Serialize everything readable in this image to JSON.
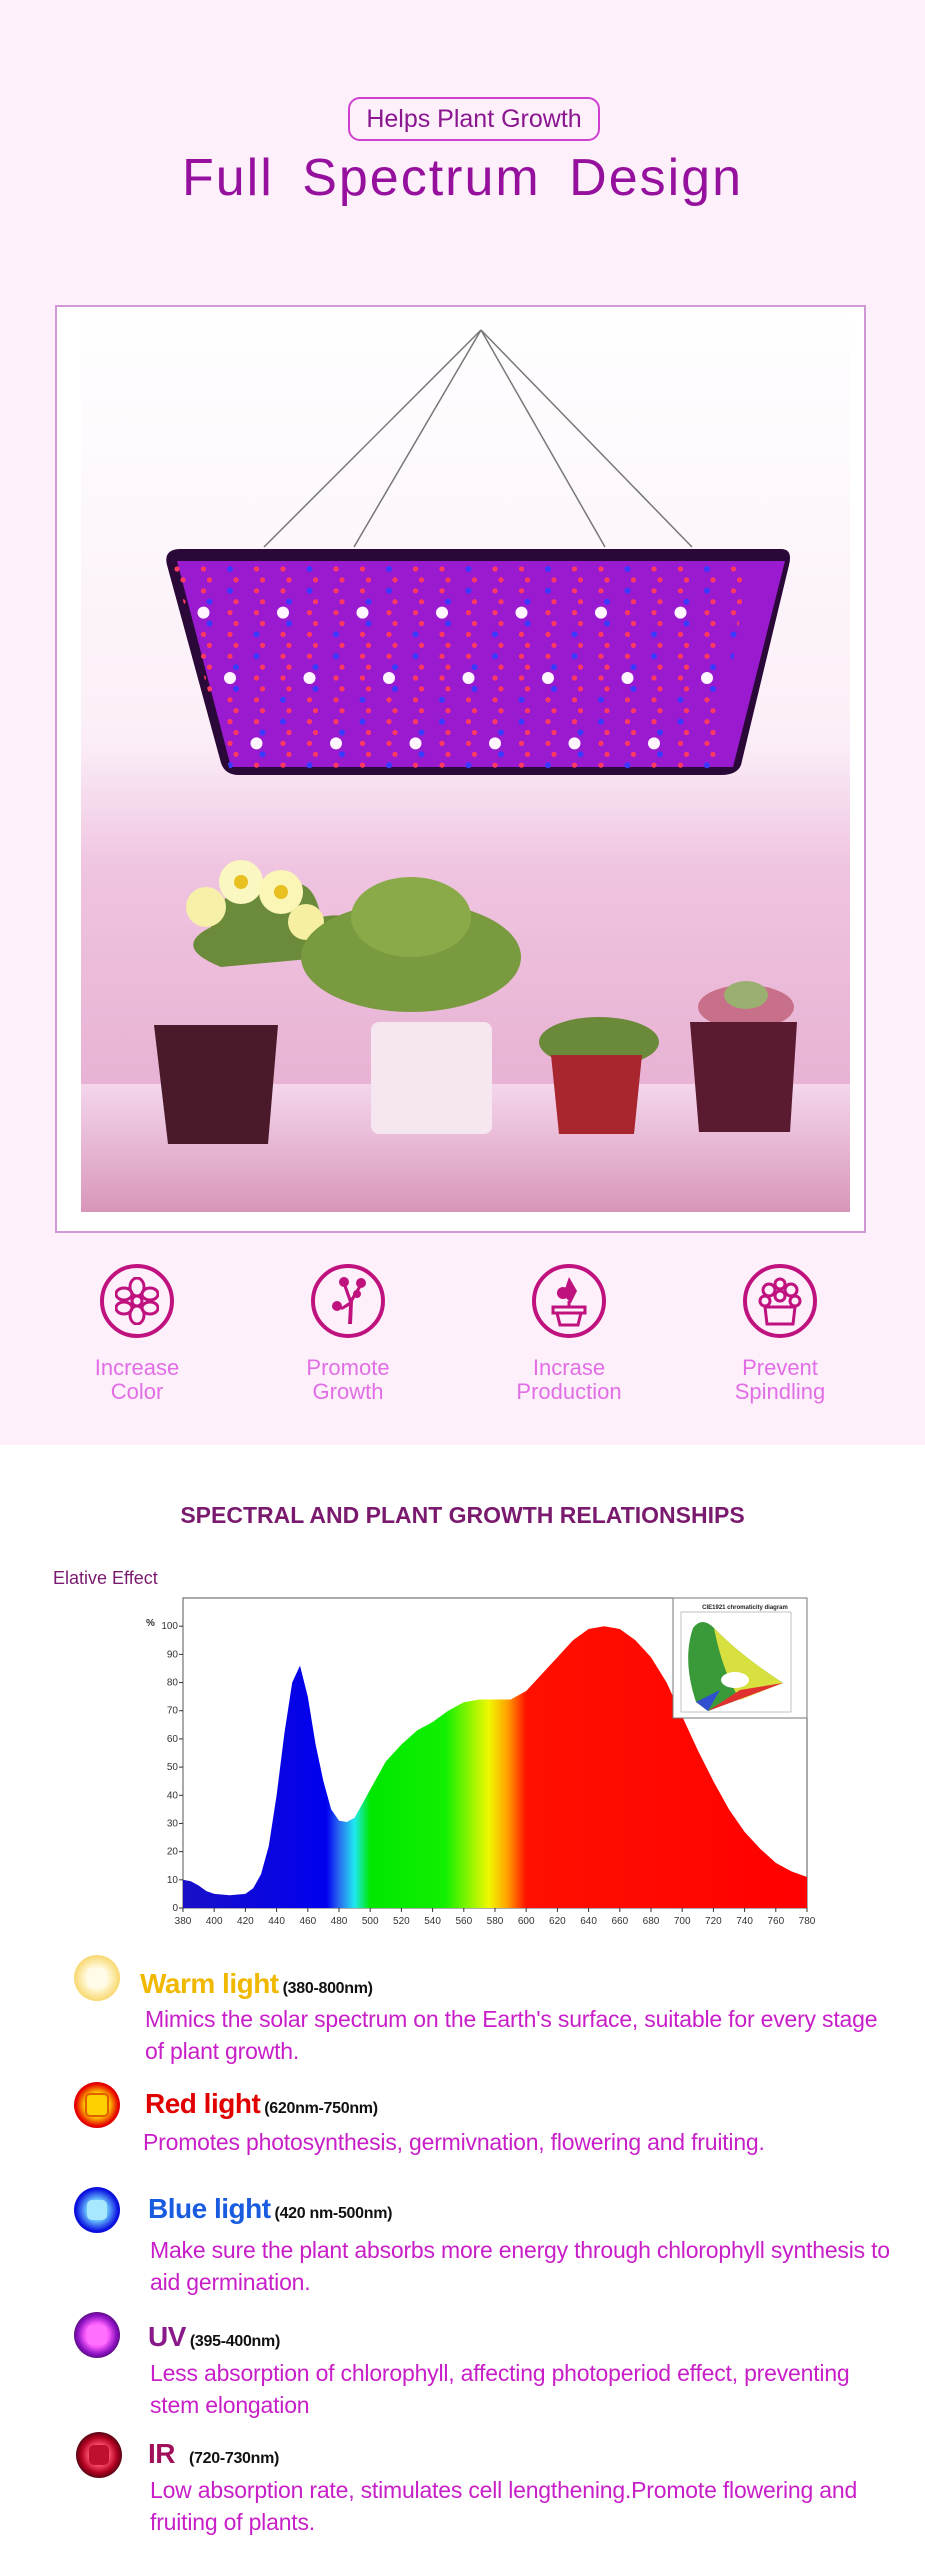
{
  "header": {
    "badge": "Helps Plant Growth",
    "title": "Full Spectrum Design"
  },
  "colors": {
    "accent": "#96109e",
    "icon_ring": "#c0127e",
    "feature_label": "#e26ee6",
    "description": "#c81ec8",
    "page_bg": "#fdf0fb"
  },
  "features": [
    {
      "line1": "Increase",
      "line2": "Color",
      "icon": "flower-icon"
    },
    {
      "line1": "Promote",
      "line2": "Growth",
      "icon": "branch-icon"
    },
    {
      "line1": "Incrase",
      "line2": "Production",
      "icon": "potted-plant-icon"
    },
    {
      "line1": "Prevent",
      "line2": "Spindling",
      "icon": "succulent-pot-icon"
    }
  ],
  "spectrum": {
    "title": "SPECTRAL AND PLANT GROWTH RELATIONSHIPS",
    "effect_label": "Elative Effect",
    "inset_title": "CIE1921 chromaticity diagram"
  },
  "chart_data": {
    "type": "area",
    "title": "",
    "xlabel": "",
    "ylabel": "%",
    "xlim": [
      380,
      780
    ],
    "ylim": [
      0,
      110
    ],
    "grid": false,
    "x_ticks": [
      380,
      400,
      420,
      440,
      460,
      480,
      500,
      520,
      540,
      560,
      580,
      600,
      620,
      640,
      660,
      680,
      700,
      720,
      740,
      760,
      780
    ],
    "y_ticks": [
      0,
      10,
      20,
      30,
      40,
      50,
      60,
      70,
      80,
      90,
      100
    ],
    "x": [
      380,
      385,
      390,
      395,
      400,
      410,
      420,
      425,
      430,
      435,
      440,
      445,
      450,
      455,
      460,
      465,
      470,
      475,
      480,
      485,
      490,
      495,
      500,
      505,
      510,
      520,
      530,
      540,
      550,
      560,
      570,
      580,
      590,
      600,
      610,
      620,
      630,
      640,
      650,
      660,
      670,
      680,
      690,
      700,
      710,
      720,
      730,
      740,
      750,
      760,
      770,
      780
    ],
    "y": [
      10,
      9.5,
      8,
      6,
      5,
      4.5,
      5,
      7,
      12,
      22,
      40,
      62,
      80,
      86,
      75,
      58,
      45,
      35,
      31,
      30.5,
      32,
      37,
      42,
      47,
      52,
      58,
      63,
      66,
      70,
      73,
      74,
      74,
      74,
      77,
      83,
      89,
      95,
      99,
      100,
      99,
      95,
      89,
      80,
      68,
      56,
      45,
      35,
      27,
      21,
      16,
      13,
      11
    ]
  },
  "lights": [
    {
      "name": "Warm light",
      "range": "(380-800nm)",
      "desc": "Mimics the solar spectrum on the Earth's surface, suitable for every stage of plant growth.",
      "color": "#f0b800",
      "icon": "warm-led-icon"
    },
    {
      "name": "Red light",
      "range": "(620nm-750nm)",
      "desc": "Promotes photosynthesis, germivnation, flowering and fruiting.",
      "color": "#e00000",
      "icon": "red-led-icon"
    },
    {
      "name": "Blue light",
      "range": "(420 nm-500nm)",
      "desc": "Make sure the plant absorbs more energy through chlorophyll synthesis to aid germination.",
      "color": "#1a5ce0",
      "icon": "blue-led-icon"
    },
    {
      "name": "UV",
      "range": "(395-400nm)",
      "desc": "Less absorption of chlorophyll, affecting photoperiod effect, preventing stem elongation",
      "color": "#8a1a8a",
      "icon": "uv-led-icon"
    },
    {
      "name": "IR",
      "range": "(720-730nm)",
      "desc": "Low absorption rate, stimulates cell lengthening.Promote flowering and fruiting of plants.",
      "color": "#a0105a",
      "icon": "ir-led-icon"
    }
  ]
}
